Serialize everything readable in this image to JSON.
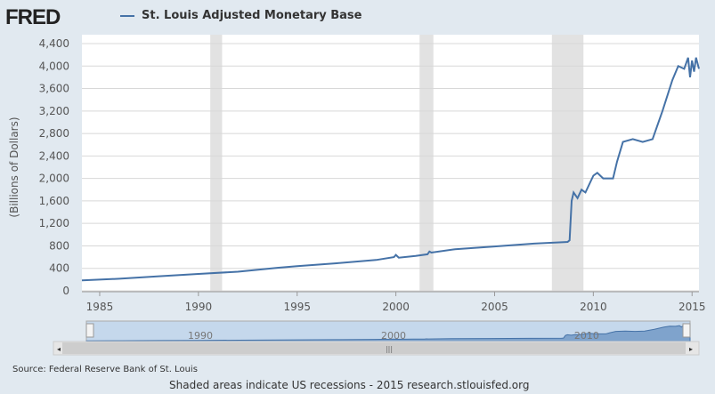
{
  "header": {
    "logo": "FRED",
    "legend": "St. Louis Adjusted Monetary Base"
  },
  "colors": {
    "line": "#4572a7",
    "recession": "#e2e2e2"
  },
  "footer": {
    "source": "Source: Federal Reserve Bank of St. Louis",
    "note": "Shaded areas indicate US recessions - 2015 research.stlouisfed.org"
  },
  "navigator": {
    "labels": [
      "1990",
      "2000",
      "2010"
    ]
  },
  "chart_data": {
    "type": "line",
    "title": "St. Louis Adjusted Monetary Base",
    "ylabel": "(Billions of Dollars)",
    "xlabel": "",
    "xlim": [
      1984.1,
      2015.35
    ],
    "ylim": [
      0,
      4400
    ],
    "xticks": [
      "1985",
      "1990",
      "1995",
      "2000",
      "2005",
      "2010",
      "2015"
    ],
    "yticks": [
      "0",
      "400",
      "800",
      "1,200",
      "1,600",
      "2,000",
      "2,400",
      "2,800",
      "3,200",
      "3,600",
      "4,000",
      "4,400"
    ],
    "recessions": [
      [
        1990.6,
        1991.2
      ],
      [
        2001.2,
        2001.9
      ],
      [
        2007.9,
        2009.5
      ]
    ],
    "x": [
      1984.1,
      1986,
      1988,
      1990,
      1992,
      1994,
      1995,
      1997,
      1999,
      1999.9,
      2000.0,
      2000.15,
      2001,
      2001.6,
      2001.7,
      2001.8,
      2003,
      2005,
      2007,
      2008.7,
      2008.8,
      2008.9,
      2009.0,
      2009.2,
      2009.4,
      2009.6,
      2010.0,
      2010.2,
      2010.5,
      2011.0,
      2011.2,
      2011.5,
      2012.0,
      2012.5,
      2013.0,
      2013.5,
      2014.0,
      2014.3,
      2014.6,
      2014.8,
      2014.9,
      2015.0,
      2015.1,
      2015.2,
      2015.35
    ],
    "y": [
      185,
      215,
      260,
      300,
      340,
      410,
      440,
      490,
      550,
      600,
      640,
      590,
      620,
      650,
      700,
      680,
      740,
      790,
      840,
      870,
      900,
      1600,
      1750,
      1650,
      1800,
      1750,
      2050,
      2100,
      2000,
      2000,
      2300,
      2650,
      2700,
      2650,
      2700,
      3200,
      3750,
      4000,
      3950,
      4150,
      3800,
      4100,
      3900,
      4150,
      3950
    ]
  }
}
